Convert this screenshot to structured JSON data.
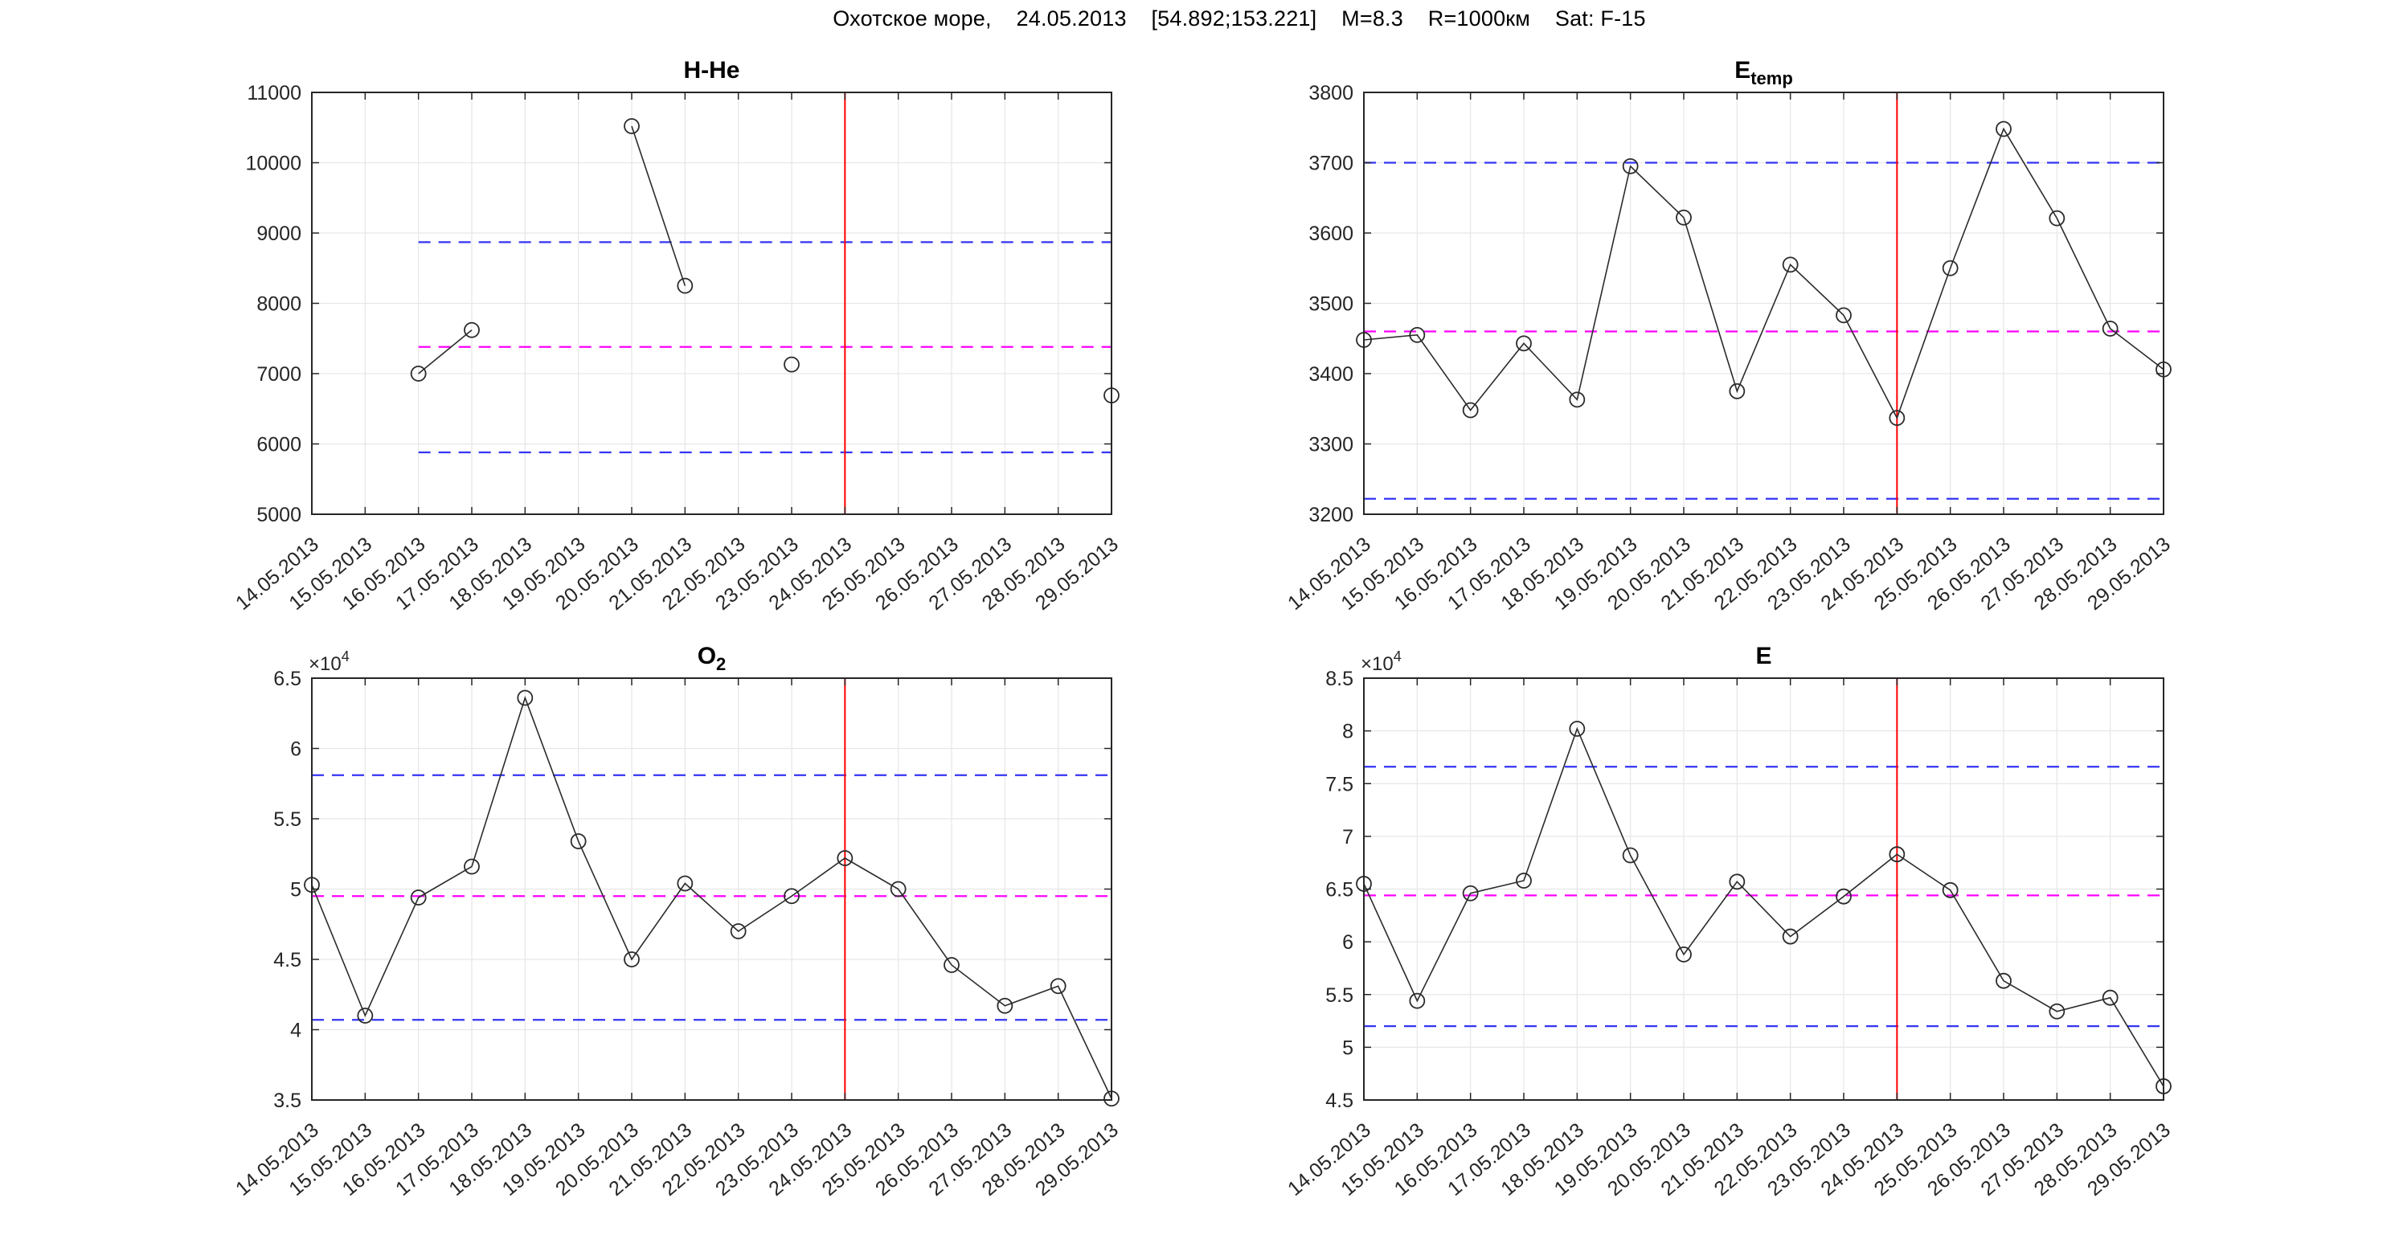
{
  "header": {
    "title": "Охотское море,    24.05.2013    [54.892;153.221]    M=8.3    R=1000км    Sat: F-15"
  },
  "x_axis": {
    "tick_labels": [
      "14.05.2013",
      "15.05.2013",
      "16.05.2013",
      "17.05.2013",
      "18.05.2013",
      "19.05.2013",
      "20.05.2013",
      "21.05.2013",
      "22.05.2013",
      "23.05.2013",
      "24.05.2013",
      "25.05.2013",
      "26.05.2013",
      "27.05.2013",
      "28.05.2013",
      "29.05.2013"
    ],
    "event_tick": "24.05.2013",
    "event_index": 10
  },
  "style": {
    "data_line_color": "#2b2b2b",
    "bound_line_color": "#3434f5",
    "mean_line_color": "#ff00ff",
    "event_line_color": "#ff0000",
    "grid_color": "#e7e7e7",
    "axis_color": "#262626",
    "text_color": "#262626",
    "background": "#ffffff"
  },
  "chart_data": [
    {
      "type": "line",
      "title_main": "H-He",
      "title_sub": "",
      "ylim": [
        5000,
        11000
      ],
      "ytick_step": 1000,
      "y_exponent": null,
      "y_tick_labels": [
        "5000",
        "6000",
        "7000",
        "8000",
        "9000",
        "10000",
        "11000"
      ],
      "values": [
        null,
        null,
        7000,
        7620,
        null,
        null,
        10520,
        8250,
        null,
        7130,
        null,
        null,
        null,
        null,
        null,
        6690
      ],
      "upper_bound": 8870,
      "mean": 7380,
      "lower_bound": 5880
    },
    {
      "type": "line",
      "title_main": "E",
      "title_sub": "temp",
      "ylim": [
        3200,
        3800
      ],
      "ytick_step": 100,
      "y_exponent": null,
      "y_tick_labels": [
        "3200",
        "3300",
        "3400",
        "3500",
        "3600",
        "3700",
        "3800"
      ],
      "values": [
        3448,
        3455,
        3348,
        3443,
        3363,
        3695,
        3622,
        3375,
        3555,
        3483,
        3337,
        3550,
        3748,
        3621,
        3464,
        3406
      ],
      "upper_bound": 3700,
      "mean": 3460,
      "lower_bound": 3222
    },
    {
      "type": "line",
      "title_main": "O",
      "title_sub": "2",
      "ylim": [
        35000,
        65000
      ],
      "ytick_step": 5000,
      "y_exponent": {
        "base": "×10",
        "power": "4"
      },
      "y_tick_labels": [
        "3.5",
        "4",
        "4.5",
        "5",
        "5.5",
        "6",
        "6.5"
      ],
      "values": [
        50300,
        41000,
        49400,
        51600,
        63600,
        53400,
        45000,
        50400,
        47000,
        49500,
        52200,
        50000,
        44600,
        41700,
        43100,
        35100
      ],
      "upper_bound": 58100,
      "mean": 49500,
      "lower_bound": 40700
    },
    {
      "type": "line",
      "title_main": "E",
      "title_sub": "",
      "ylim": [
        45000,
        85000
      ],
      "ytick_step": 5000,
      "y_exponent": {
        "base": "×10",
        "power": "4"
      },
      "y_tick_labels": [
        "4.5",
        "5",
        "5.5",
        "6",
        "6.5",
        "7",
        "7.5",
        "8",
        "8.5"
      ],
      "values": [
        65500,
        54400,
        64600,
        65800,
        80200,
        68200,
        58800,
        65700,
        60500,
        64300,
        68300,
        64900,
        56300,
        53400,
        54700,
        46300
      ],
      "upper_bound": 76600,
      "mean": 64400,
      "lower_bound": 52000
    }
  ]
}
